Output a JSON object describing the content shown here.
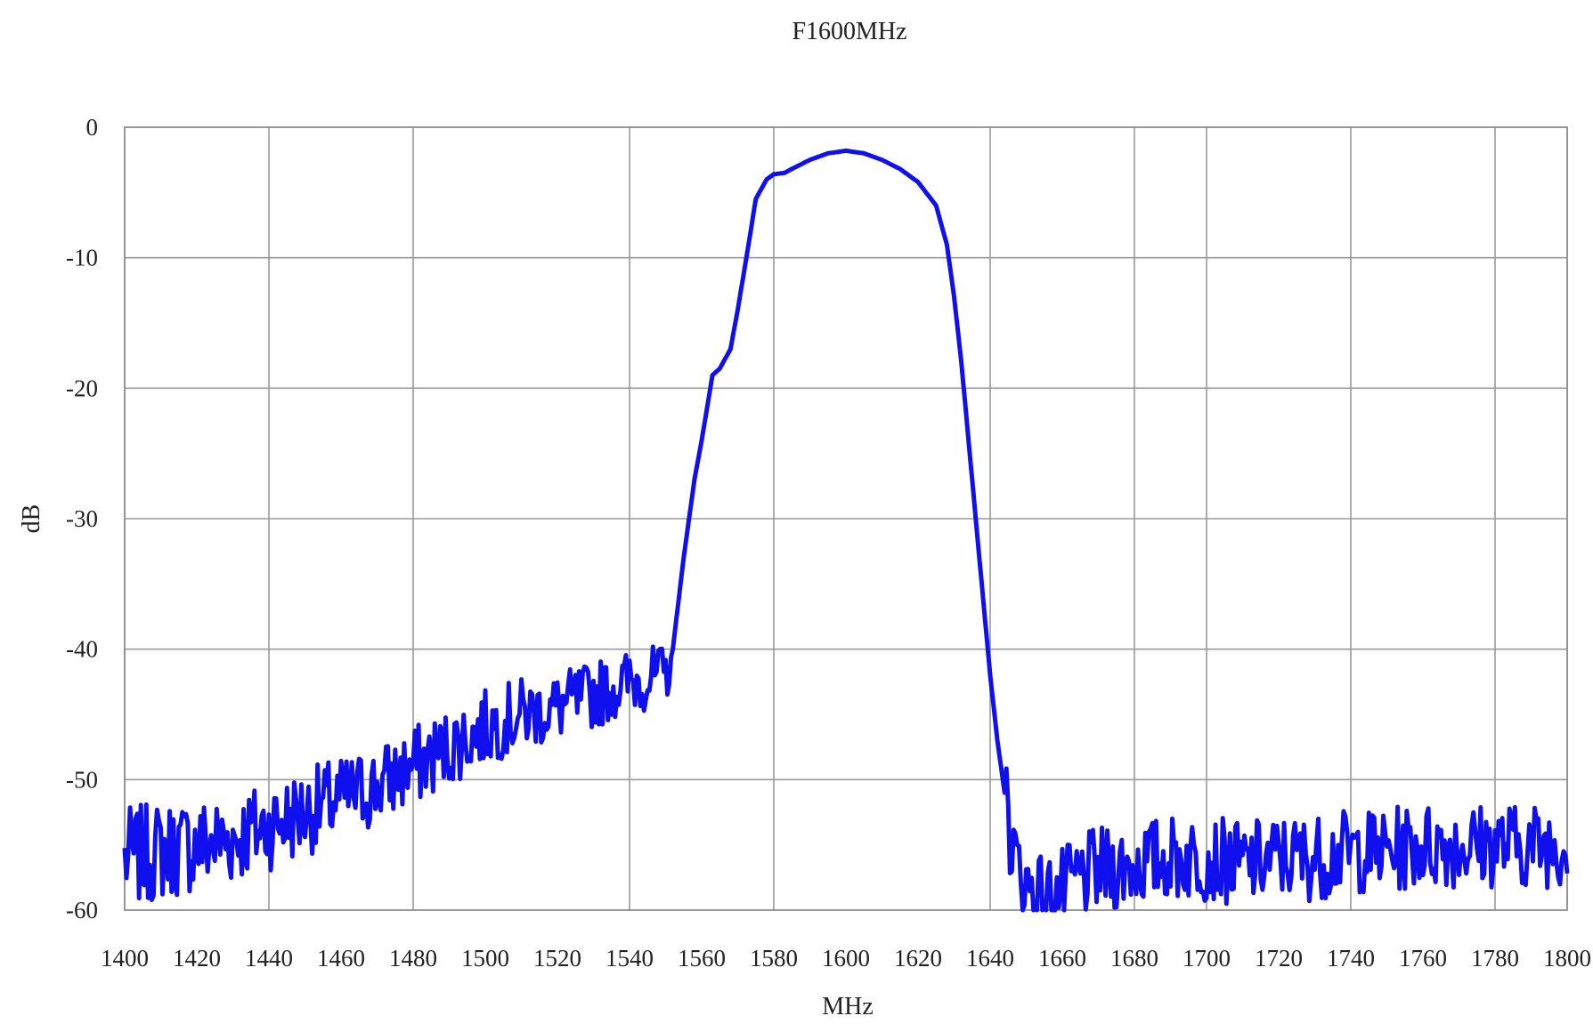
{
  "chart_data": {
    "type": "line",
    "title": "F1600MHz",
    "xlabel": "MHz",
    "ylabel": "dB",
    "xlim": [
      1400,
      1800
    ],
    "ylim": [
      -60,
      0
    ],
    "x_ticks": [
      "1400",
      "1420",
      "1440",
      "1460",
      "1480",
      "1500",
      "1520",
      "1540",
      "1560",
      "1580",
      "1600",
      "1620",
      "1640",
      "1660",
      "1680",
      "1700",
      "1720",
      "1740",
      "1760",
      "1780",
      "1800"
    ],
    "y_ticks": [
      "0",
      "-10",
      "-20",
      "-30",
      "-40",
      "-50",
      "-60"
    ],
    "x_gridlines": [
      1400,
      1440,
      1480,
      1540,
      1580,
      1640,
      1680,
      1700,
      1740,
      1780,
      1800
    ],
    "y_gridlines": [
      0,
      -10,
      -20,
      -30,
      -40,
      -50,
      -60
    ],
    "grid": true,
    "legend": "none",
    "colors": {
      "line": "#1010ee",
      "grid": "#9a9a9a",
      "background": "#ffffff"
    },
    "series": [
      {
        "x": [
          1400,
          1410,
          1420,
          1430,
          1440,
          1450,
          1460,
          1470,
          1480,
          1490,
          1500,
          1510,
          1520,
          1530,
          1540,
          1550,
          1552,
          1555,
          1558,
          1560,
          1563,
          1565,
          1568,
          1570,
          1573,
          1575,
          1578,
          1580,
          1583,
          1585,
          1590,
          1595,
          1600,
          1605,
          1610,
          1615,
          1620,
          1625,
          1628,
          1630,
          1632,
          1634,
          1636,
          1638,
          1640,
          1642,
          1644,
          1646,
          1648,
          1650,
          1655,
          1660,
          1665,
          1670,
          1680,
          1690,
          1700,
          1710,
          1720,
          1730,
          1740,
          1750,
          1760,
          1770,
          1780,
          1790,
          1800
        ],
        "y": [
          -56,
          -55.5,
          -55,
          -54.5,
          -53.5,
          -52.5,
          -51.5,
          -50.5,
          -49,
          -47.5,
          -46,
          -45,
          -44.5,
          -43.5,
          -42.5,
          -42,
          -40,
          -33,
          -27,
          -24,
          -19,
          -18.5,
          -17,
          -14,
          -9,
          -5.5,
          -4,
          -3.6,
          -3.5,
          -3.2,
          -2.5,
          -2,
          -1.8,
          -2,
          -2.5,
          -3.2,
          -4.2,
          -6,
          -9,
          -13,
          -18,
          -24,
          -30,
          -36,
          -42,
          -47,
          -51,
          -55,
          -57,
          -58,
          -59,
          -58.5,
          -57.5,
          -57,
          -56.5,
          -56,
          -56,
          -56.5,
          -56,
          -56,
          -55.5,
          -55.5,
          -55,
          -55,
          -55,
          -55,
          -55
        ],
        "noise_amplitude_db": 3
      }
    ]
  }
}
